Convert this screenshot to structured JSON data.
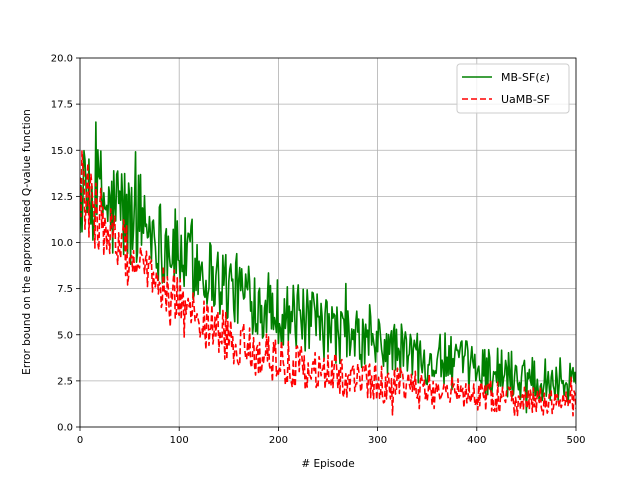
{
  "chart_data": {
    "type": "line",
    "title": "",
    "xlabel": "# Episode",
    "ylabel": "Error bound on the approximated Q-value function",
    "xlim": [
      0,
      500
    ],
    "ylim": [
      0.0,
      20.0
    ],
    "xticks": [
      "0",
      "100",
      "200",
      "300",
      "400",
      "500"
    ],
    "yticks": [
      "0.0",
      "2.5",
      "5.0",
      "7.5",
      "10.0",
      "12.5",
      "15.0",
      "17.5",
      "20.0"
    ],
    "grid": true,
    "legend_position": "top-right",
    "series": [
      {
        "name": "MB-SF(ε)",
        "legend_label": "MB-SF(",
        "legend_symbol": "ε",
        "legend_close": ")",
        "color": "#008000",
        "style": "solid",
        "x": [
          0,
          10,
          20,
          30,
          40,
          50,
          60,
          70,
          80,
          90,
          100,
          110,
          120,
          130,
          140,
          150,
          160,
          170,
          180,
          190,
          200,
          210,
          220,
          230,
          240,
          250,
          260,
          270,
          280,
          290,
          300,
          310,
          320,
          330,
          340,
          350,
          360,
          370,
          380,
          390,
          400,
          410,
          420,
          430,
          440,
          450,
          460,
          470,
          480,
          490,
          500
        ],
        "y": [
          12.5,
          12.0,
          12.8,
          11.5,
          12.0,
          11.0,
          11.6,
          10.8,
          10.2,
          9.8,
          9.4,
          9.0,
          8.7,
          8.4,
          8.0,
          7.6,
          7.4,
          7.1,
          6.8,
          6.5,
          6.3,
          6.1,
          5.9,
          5.7,
          5.5,
          5.3,
          5.1,
          4.9,
          4.7,
          4.6,
          4.4,
          4.3,
          4.2,
          4.0,
          3.9,
          3.8,
          3.6,
          3.5,
          3.4,
          3.3,
          3.2,
          3.1,
          3.0,
          2.9,
          2.8,
          2.8,
          2.7,
          2.6,
          2.6,
          2.5,
          2.5
        ],
        "noise": [
          2.0,
          2.2,
          2.3,
          2.5,
          2.6,
          2.4,
          2.2,
          2.1,
          2.0,
          2.0,
          2.0,
          1.9,
          1.9,
          1.8,
          1.8,
          1.8,
          1.7,
          1.7,
          1.7,
          1.6,
          1.6,
          1.6,
          1.6,
          1.5,
          1.5,
          1.5,
          1.5,
          1.4,
          1.4,
          1.4,
          1.4,
          1.4,
          1.3,
          1.3,
          1.3,
          1.3,
          1.3,
          1.3,
          1.2,
          1.2,
          1.2,
          1.2,
          1.2,
          1.2,
          1.2,
          1.1,
          1.1,
          1.1,
          1.1,
          1.1,
          1.1
        ]
      },
      {
        "name": "UaMB-SF",
        "legend_label": "UaMB-SF",
        "color": "#ff0000",
        "style": "dashed",
        "x": [
          0,
          10,
          20,
          30,
          40,
          50,
          60,
          70,
          80,
          90,
          100,
          110,
          120,
          130,
          140,
          150,
          160,
          170,
          180,
          190,
          200,
          210,
          220,
          230,
          240,
          250,
          260,
          270,
          280,
          290,
          300,
          310,
          320,
          330,
          340,
          350,
          360,
          370,
          380,
          390,
          400,
          410,
          420,
          430,
          440,
          450,
          460,
          470,
          480,
          490,
          500
        ],
        "y": [
          13.5,
          12.0,
          11.2,
          10.4,
          9.8,
          9.2,
          8.6,
          8.0,
          7.5,
          7.0,
          6.6,
          6.1,
          5.8,
          5.4,
          5.1,
          4.8,
          4.5,
          4.2,
          4.0,
          3.8,
          3.6,
          3.4,
          3.3,
          3.1,
          3.0,
          2.9,
          2.8,
          2.7,
          2.6,
          2.5,
          2.4,
          2.3,
          2.2,
          2.1,
          2.0,
          2.0,
          1.9,
          1.9,
          1.8,
          1.8,
          1.7,
          1.7,
          1.6,
          1.6,
          1.5,
          1.5,
          1.4,
          1.4,
          1.3,
          1.3,
          1.2
        ],
        "noise": [
          1.8,
          1.8,
          1.7,
          1.6,
          1.6,
          1.5,
          1.5,
          1.4,
          1.4,
          1.4,
          1.3,
          1.3,
          1.3,
          1.2,
          1.2,
          1.2,
          1.2,
          1.1,
          1.1,
          1.1,
          1.1,
          1.1,
          1.0,
          1.0,
          1.0,
          1.0,
          1.0,
          1.0,
          0.9,
          0.9,
          0.9,
          0.9,
          0.9,
          0.9,
          0.9,
          0.9,
          0.8,
          0.8,
          0.8,
          0.8,
          0.8,
          0.8,
          0.8,
          0.8,
          0.8,
          0.7,
          0.7,
          0.7,
          0.7,
          0.7,
          0.7
        ]
      }
    ]
  }
}
